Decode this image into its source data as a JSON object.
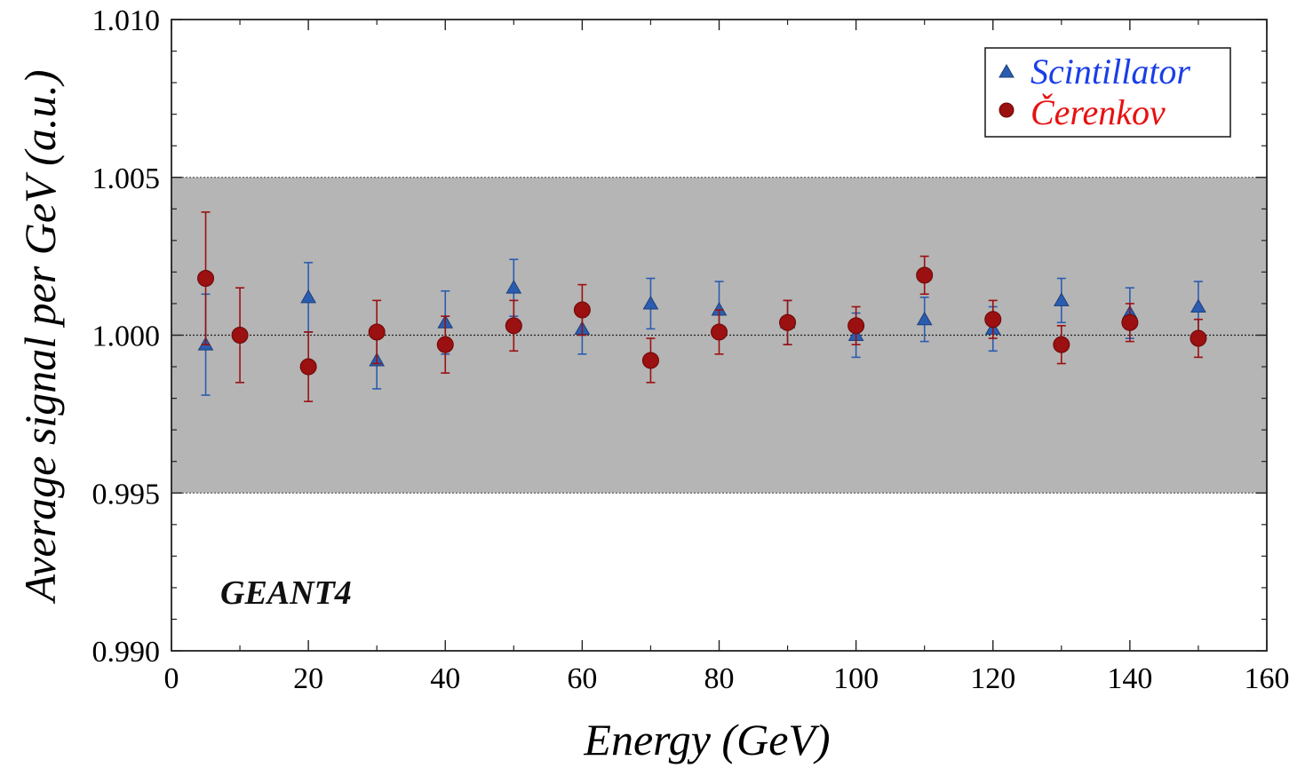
{
  "chart_data": {
    "type": "scatter",
    "ylabel": "Average signal per GeV (a.u.)",
    "xlabel": "Energy (GeV)",
    "annotation": "GEANT4",
    "xlim": [
      0,
      160
    ],
    "ylim": [
      0.99,
      1.01
    ],
    "xticks": [
      0,
      20,
      40,
      60,
      80,
      100,
      120,
      140,
      160
    ],
    "xtick_labels": [
      "0",
      "20",
      "40",
      "60",
      "80",
      "100",
      "120",
      "140",
      "160"
    ],
    "yticks": [
      0.99,
      0.995,
      1.0,
      1.005,
      1.01
    ],
    "ytick_labels": [
      "0.990",
      "0.995",
      "1.000",
      "1.005",
      "1.010"
    ],
    "band": {
      "ymin": 0.995,
      "ymax": 1.005,
      "color": "#b5b5b5"
    },
    "reference_line": 1.0,
    "legend_position": "top-right",
    "series": [
      {
        "name": "Scintillator",
        "marker": "triangle",
        "color": "#2a5db0",
        "label_color": "#1a3ee8",
        "points": [
          {
            "x": 5,
            "y": 0.9997,
            "err": 0.0016
          },
          {
            "x": 20,
            "y": 1.0012,
            "err": 0.0011
          },
          {
            "x": 30,
            "y": 0.9992,
            "err": 0.0009
          },
          {
            "x": 40,
            "y": 1.0004,
            "err": 0.001
          },
          {
            "x": 50,
            "y": 1.0015,
            "err": 0.0009
          },
          {
            "x": 60,
            "y": 1.0002,
            "err": 0.0008
          },
          {
            "x": 70,
            "y": 1.001,
            "err": 0.0008
          },
          {
            "x": 80,
            "y": 1.0008,
            "err": 0.0009
          },
          {
            "x": 90,
            "y": 1.0004,
            "err": 0.0007
          },
          {
            "x": 100,
            "y": 1.0,
            "err": 0.0007
          },
          {
            "x": 110,
            "y": 1.0005,
            "err": 0.0007
          },
          {
            "x": 120,
            "y": 1.0002,
            "err": 0.0007
          },
          {
            "x": 130,
            "y": 1.0011,
            "err": 0.0007
          },
          {
            "x": 140,
            "y": 1.0007,
            "err": 0.0008
          },
          {
            "x": 150,
            "y": 1.0009,
            "err": 0.0008
          }
        ]
      },
      {
        "name": "Čerenkov",
        "marker": "circle",
        "color": "#9b1010",
        "label_color": "#e81010",
        "points": [
          {
            "x": 5,
            "y": 1.0018,
            "err": 0.0021
          },
          {
            "x": 10,
            "y": 1.0,
            "err": 0.0015
          },
          {
            "x": 20,
            "y": 0.999,
            "err": 0.0011
          },
          {
            "x": 30,
            "y": 1.0001,
            "err": 0.001
          },
          {
            "x": 40,
            "y": 0.9997,
            "err": 0.0009
          },
          {
            "x": 50,
            "y": 1.0003,
            "err": 0.0008
          },
          {
            "x": 60,
            "y": 1.0008,
            "err": 0.0008
          },
          {
            "x": 70,
            "y": 0.9992,
            "err": 0.0007
          },
          {
            "x": 80,
            "y": 1.0001,
            "err": 0.0007
          },
          {
            "x": 90,
            "y": 1.0004,
            "err": 0.0007
          },
          {
            "x": 100,
            "y": 1.0003,
            "err": 0.0006
          },
          {
            "x": 110,
            "y": 1.0019,
            "err": 0.0006
          },
          {
            "x": 120,
            "y": 1.0005,
            "err": 0.0006
          },
          {
            "x": 130,
            "y": 0.9997,
            "err": 0.0006
          },
          {
            "x": 140,
            "y": 1.0004,
            "err": 0.0006
          },
          {
            "x": 150,
            "y": 0.9999,
            "err": 0.0006
          }
        ]
      }
    ]
  }
}
